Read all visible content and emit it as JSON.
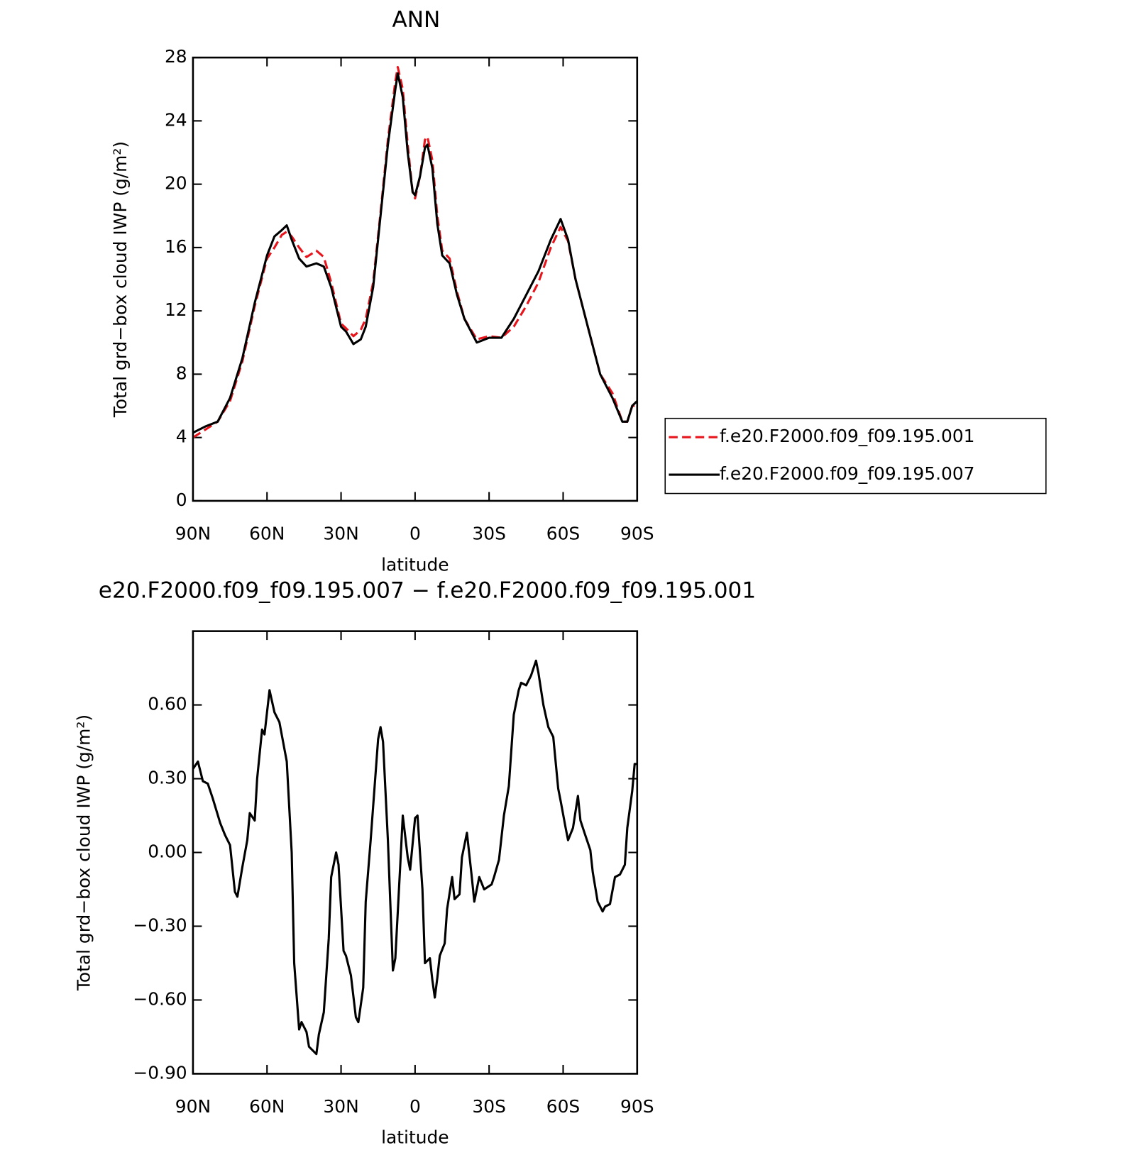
{
  "chart_data": [
    {
      "type": "line",
      "title": "ANN",
      "xlabel": "latitude",
      "ylabel": "Total grd−box cloud IWP (g/m²)",
      "x": [
        90,
        85,
        80,
        75,
        70,
        65,
        60,
        57,
        54,
        52,
        50,
        47,
        44,
        40,
        37,
        34,
        30,
        28,
        25,
        22,
        20,
        17,
        14,
        11,
        8,
        7,
        5,
        3,
        1,
        0,
        -2,
        -4,
        -5,
        -7,
        -9,
        -11,
        -14,
        -17,
        -20,
        -25,
        -30,
        -35,
        -40,
        -45,
        -50,
        -55,
        -59,
        -62,
        -65,
        -70,
        -75,
        -80,
        -84,
        -86,
        -88,
        -90
      ],
      "series": [
        {
          "name": "f.e20.F2000.f09_f09.195.001",
          "color": "#e8141c",
          "dash": true,
          "values": [
            4.0,
            4.5,
            5.0,
            6.3,
            8.8,
            12.3,
            15.3,
            16.0,
            16.8,
            17.0,
            16.7,
            16.0,
            15.4,
            15.8,
            15.4,
            13.8,
            11.2,
            10.9,
            10.4,
            10.8,
            11.5,
            13.8,
            18.2,
            22.8,
            26.5,
            27.4,
            26.0,
            22.5,
            19.5,
            19.1,
            20.5,
            22.8,
            23.0,
            21.5,
            18.0,
            15.8,
            15.3,
            13.2,
            11.5,
            10.2,
            10.4,
            10.3,
            11.0,
            12.3,
            13.8,
            16.0,
            17.3,
            16.4,
            14.0,
            11.0,
            8.0,
            6.8,
            5.0,
            5.0,
            6.0,
            6.0
          ]
        },
        {
          "name": "f.e20.F2000.f09_f09.195.007",
          "color": "#000000",
          "dash": false,
          "values": [
            4.3,
            4.7,
            5.0,
            6.5,
            9.0,
            12.5,
            15.5,
            16.7,
            17.1,
            17.4,
            16.5,
            15.3,
            14.8,
            15.0,
            14.8,
            13.5,
            11.0,
            10.7,
            9.9,
            10.2,
            11.0,
            13.5,
            18.0,
            22.5,
            26.0,
            27.0,
            25.5,
            22.0,
            19.5,
            19.3,
            20.5,
            22.3,
            22.5,
            21.0,
            17.5,
            15.5,
            15.0,
            13.0,
            11.5,
            10.0,
            10.3,
            10.3,
            11.5,
            13.0,
            14.5,
            16.5,
            17.8,
            16.5,
            14.0,
            11.0,
            8.0,
            6.5,
            5.0,
            5.0,
            6.0,
            6.3
          ]
        }
      ],
      "xlim": [
        90,
        -90
      ],
      "xticks": [
        {
          "value": 90,
          "label": "90N"
        },
        {
          "value": 60,
          "label": "60N"
        },
        {
          "value": 30,
          "label": "30N"
        },
        0,
        {
          "value": -30,
          "label": "30S"
        },
        {
          "value": -60,
          "label": "60S"
        },
        {
          "value": -90,
          "label": "90S"
        }
      ],
      "ylim": [
        0,
        28
      ],
      "yticks": [
        0,
        4,
        8,
        12,
        16,
        20,
        24,
        28
      ]
    },
    {
      "type": "line",
      "title": "e20.F2000.f09_f09.195.007 − f.e20.F2000.f09_f09.195.001",
      "xlabel": "latitude",
      "ylabel": "Total grd−box cloud IWP (g/m²)",
      "x": [
        90,
        88,
        86,
        84,
        82,
        79,
        77,
        75,
        73,
        72,
        70,
        68,
        67,
        65,
        64,
        62,
        61,
        59,
        57,
        55,
        52,
        50,
        49,
        47,
        46,
        44,
        43,
        40,
        39,
        37,
        35,
        34,
        32,
        31,
        29,
        28,
        26,
        24,
        23,
        21,
        20,
        18,
        15,
        14,
        13,
        11,
        9,
        8,
        6,
        5,
        3,
        2,
        0,
        -1,
        -3,
        -4,
        -6,
        -7,
        -8,
        -9,
        -10,
        -12,
        -13,
        -15,
        -16,
        -18,
        -19,
        -21,
        -23,
        -24,
        -26,
        -28,
        -31,
        -32,
        -34,
        -36,
        -38,
        -40,
        -42,
        -43,
        -45,
        -47,
        -49,
        -50,
        -52,
        -54,
        -56,
        -58,
        -59,
        -61,
        -62,
        -64,
        -66,
        -67,
        -69,
        -71,
        -72,
        -74,
        -76,
        -77,
        -79,
        -81,
        -83,
        -85,
        -86,
        -88,
        -89,
        -90
      ],
      "series": [
        {
          "color": "#000000",
          "dash": false,
          "values": [
            0.34,
            0.37,
            0.29,
            0.28,
            0.22,
            0.12,
            0.07,
            0.03,
            -0.16,
            -0.18,
            -0.06,
            0.05,
            0.16,
            0.13,
            0.3,
            0.5,
            0.48,
            0.66,
            0.57,
            0.53,
            0.37,
            0.0,
            -0.45,
            -0.72,
            -0.69,
            -0.73,
            -0.79,
            -0.82,
            -0.74,
            -0.65,
            -0.35,
            -0.1,
            0.0,
            -0.05,
            -0.4,
            -0.42,
            -0.5,
            -0.67,
            -0.69,
            -0.55,
            -0.2,
            0.05,
            0.46,
            0.51,
            0.45,
            0.05,
            -0.48,
            -0.43,
            -0.05,
            0.15,
            -0.02,
            -0.07,
            0.14,
            0.15,
            -0.15,
            -0.45,
            -0.43,
            -0.52,
            -0.59,
            -0.51,
            -0.42,
            -0.37,
            -0.23,
            -0.1,
            -0.19,
            -0.17,
            -0.02,
            0.08,
            -0.1,
            -0.2,
            -0.1,
            -0.15,
            -0.13,
            -0.1,
            -0.03,
            0.15,
            0.27,
            0.56,
            0.66,
            0.69,
            0.68,
            0.72,
            0.78,
            0.73,
            0.6,
            0.51,
            0.47,
            0.26,
            0.21,
            0.1,
            0.05,
            0.1,
            0.23,
            0.13,
            0.07,
            0.01,
            -0.08,
            -0.2,
            -0.24,
            -0.22,
            -0.21,
            -0.1,
            -0.09,
            -0.05,
            0.1,
            0.25,
            0.36,
            0.36
          ]
        }
      ],
      "xlim": [
        90,
        -90
      ],
      "xticks": [
        {
          "value": 90,
          "label": "90N"
        },
        {
          "value": 60,
          "label": "60N"
        },
        {
          "value": 30,
          "label": "30N"
        },
        0,
        {
          "value": -30,
          "label": "30S"
        },
        {
          "value": -60,
          "label": "60S"
        },
        {
          "value": -90,
          "label": "90S"
        }
      ],
      "ylim": [
        -0.9,
        0.9
      ],
      "yticks": [
        {
          "value": -0.9,
          "label": "−0.90"
        },
        {
          "value": -0.6,
          "label": "−0.60"
        },
        {
          "value": -0.3,
          "label": "−0.30"
        },
        {
          "value": 0,
          "label": "0.00"
        },
        {
          "value": 0.3,
          "label": "0.30"
        },
        {
          "value": 0.6,
          "label": "0.60"
        }
      ]
    }
  ]
}
